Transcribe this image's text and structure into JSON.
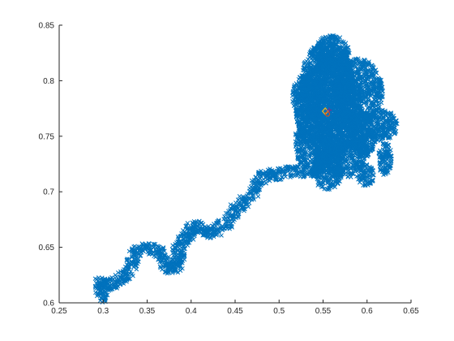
{
  "chart_data": {
    "type": "scatter",
    "title": "",
    "xlabel": "",
    "ylabel": "",
    "xlim": [
      0.25,
      0.65
    ],
    "ylim": [
      0.6,
      0.85
    ],
    "xticks": [
      "0.25",
      "0.3",
      "0.35",
      "0.4",
      "0.45",
      "0.5",
      "0.55",
      "0.6",
      "0.65"
    ],
    "yticks": [
      "0.6",
      "0.65",
      "0.7",
      "0.75",
      "0.8",
      "0.85"
    ],
    "grid": false,
    "marker": "x",
    "series": [
      {
        "name": "",
        "color": "#0072BD",
        "description_path": [
          [
            0.295,
            0.612
          ],
          [
            0.3,
            0.605
          ],
          [
            0.302,
            0.615
          ],
          [
            0.296,
            0.618
          ],
          [
            0.305,
            0.617
          ],
          [
            0.315,
            0.617
          ],
          [
            0.322,
            0.622
          ],
          [
            0.328,
            0.628
          ],
          [
            0.332,
            0.635
          ],
          [
            0.335,
            0.643
          ],
          [
            0.34,
            0.648
          ],
          [
            0.35,
            0.649
          ],
          [
            0.36,
            0.648
          ],
          [
            0.368,
            0.643
          ],
          [
            0.372,
            0.636
          ],
          [
            0.375,
            0.632
          ],
          [
            0.38,
            0.631
          ],
          [
            0.385,
            0.636
          ],
          [
            0.387,
            0.642
          ],
          [
            0.385,
            0.65
          ],
          [
            0.39,
            0.656
          ],
          [
            0.396,
            0.66
          ],
          [
            0.4,
            0.666
          ],
          [
            0.405,
            0.669
          ],
          [
            0.41,
            0.667
          ],
          [
            0.418,
            0.664
          ],
          [
            0.424,
            0.662
          ],
          [
            0.43,
            0.668
          ],
          [
            0.44,
            0.672
          ],
          [
            0.448,
            0.679
          ],
          [
            0.452,
            0.686
          ],
          [
            0.46,
            0.69
          ],
          [
            0.468,
            0.696
          ],
          [
            0.474,
            0.703
          ],
          [
            0.478,
            0.71
          ],
          [
            0.485,
            0.716
          ],
          [
            0.492,
            0.715
          ],
          [
            0.5,
            0.716
          ],
          [
            0.51,
            0.718
          ],
          [
            0.52,
            0.718
          ],
          [
            0.53,
            0.718
          ],
          [
            0.545,
            0.722
          ],
          [
            0.555,
            0.722
          ]
        ],
        "cloud": {
          "center": [
            0.554,
            0.772
          ],
          "x_extent": [
            0.52,
            0.64
          ],
          "y_extent": [
            0.695,
            0.842
          ]
        }
      }
    ],
    "annotations": [
      {
        "marker": "diamond",
        "color": "#EDB120",
        "x": 0.5525,
        "y": 0.7725
      },
      {
        "marker": "circle",
        "color": "#D95319",
        "x": 0.555,
        "y": 0.77
      },
      {
        "marker": "plus",
        "color": "#7E2F8E",
        "x": 0.557,
        "y": 0.7735
      }
    ]
  }
}
